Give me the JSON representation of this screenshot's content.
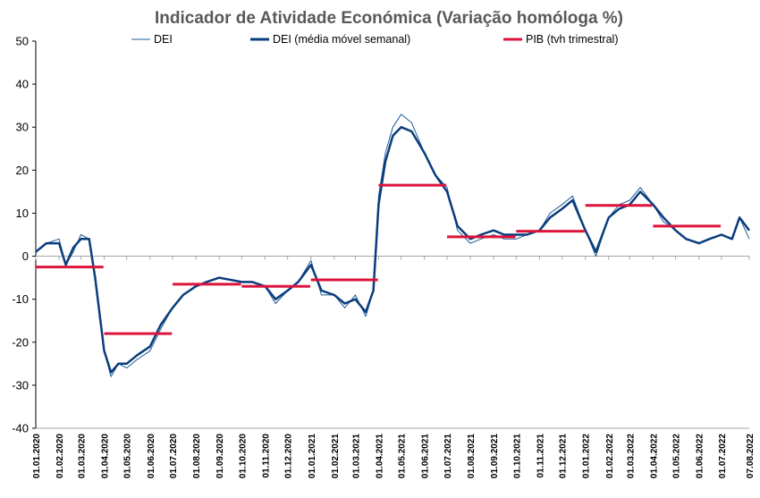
{
  "chart_data": {
    "type": "line",
    "title": "Indicador de Atividade Económica (Variação homóloga %)",
    "xlabel": "",
    "ylabel": "",
    "ylim": [
      -40,
      50
    ],
    "yticks": [
      "50",
      "40",
      "30",
      "20",
      "10",
      "0",
      "-10",
      "-20",
      "-30",
      "-40"
    ],
    "xlim": [
      "2020-01-01",
      "2022-08-07"
    ],
    "xticks": [
      "01.01.2020",
      "01.02.2020",
      "01.03.2020",
      "01.04.2020",
      "01.05.2020",
      "01.06.2020",
      "01.07.2020",
      "01.08.2020",
      "01.09.2020",
      "01.10.2020",
      "01.11.2020",
      "01.12.2020",
      "01.01.2021",
      "01.02.2021",
      "01.03.2021",
      "01.04.2021",
      "01.05.2021",
      "01.06.2021",
      "01.07.2021",
      "01.08.2021",
      "01.09.2021",
      "01.10.2021",
      "01.11.2021",
      "01.12.2021",
      "01.01.2022",
      "01.02.2022",
      "01.03.2022",
      "01.04.2022",
      "01.05.2022",
      "01.06.2022",
      "01.07.2022",
      "07.08.2022"
    ],
    "legend_position": "top",
    "grid": false,
    "series": [
      {
        "name": "DEI",
        "style": "thin-line",
        "color": "#1f5a96",
        "x": [
          "2020-01-01",
          "2020-01-15",
          "2020-02-01",
          "2020-02-10",
          "2020-02-20",
          "2020-03-01",
          "2020-03-12",
          "2020-03-20",
          "2020-04-01",
          "2020-04-10",
          "2020-04-20",
          "2020-05-01",
          "2020-05-15",
          "2020-06-01",
          "2020-06-15",
          "2020-07-01",
          "2020-07-15",
          "2020-08-01",
          "2020-08-15",
          "2020-09-01",
          "2020-10-01",
          "2020-10-15",
          "2020-11-01",
          "2020-11-15",
          "2020-12-01",
          "2020-12-15",
          "2021-01-01",
          "2021-01-15",
          "2021-02-01",
          "2021-02-15",
          "2021-03-01",
          "2021-03-15",
          "2021-03-25",
          "2021-04-01",
          "2021-04-10",
          "2021-04-20",
          "2021-05-01",
          "2021-05-15",
          "2021-06-01",
          "2021-06-15",
          "2021-07-01",
          "2021-07-15",
          "2021-08-01",
          "2021-08-15",
          "2021-09-01",
          "2021-09-15",
          "2021-10-01",
          "2021-10-15",
          "2021-11-01",
          "2021-11-15",
          "2021-12-01",
          "2021-12-15",
          "2022-01-01",
          "2022-01-15",
          "2022-02-01",
          "2022-02-15",
          "2022-03-01",
          "2022-03-15",
          "2022-04-01",
          "2022-04-15",
          "2022-05-01",
          "2022-05-15",
          "2022-06-01",
          "2022-06-15",
          "2022-07-01",
          "2022-07-15",
          "2022-07-25",
          "2022-08-07"
        ],
        "values": [
          1,
          3,
          4,
          -2,
          1,
          5,
          4,
          -5,
          -22,
          -28,
          -25,
          -26,
          -24,
          -22,
          -17,
          -12,
          -9,
          -7,
          -6,
          -5,
          -6,
          -6,
          -7,
          -11,
          -8,
          -6,
          -1,
          -9,
          -9,
          -12,
          -9,
          -14,
          -8,
          14,
          24,
          30,
          33,
          31,
          24,
          19,
          16,
          6,
          3,
          4,
          5,
          4,
          4,
          5,
          6,
          10,
          12,
          14,
          6,
          0,
          9,
          12,
          13,
          16,
          12,
          8,
          6,
          4,
          3,
          4,
          5,
          4,
          9,
          4
        ]
      },
      {
        "name": "DEI (média móvel semanal)",
        "style": "thick-line",
        "color": "#0a3d7c",
        "x": [
          "2020-01-01",
          "2020-01-15",
          "2020-02-01",
          "2020-02-10",
          "2020-02-20",
          "2020-03-01",
          "2020-03-12",
          "2020-03-20",
          "2020-04-01",
          "2020-04-10",
          "2020-04-20",
          "2020-05-01",
          "2020-05-15",
          "2020-06-01",
          "2020-06-15",
          "2020-07-01",
          "2020-07-15",
          "2020-08-01",
          "2020-08-15",
          "2020-09-01",
          "2020-10-01",
          "2020-10-15",
          "2020-11-01",
          "2020-11-15",
          "2020-12-01",
          "2020-12-15",
          "2021-01-01",
          "2021-01-15",
          "2021-02-01",
          "2021-02-15",
          "2021-03-01",
          "2021-03-15",
          "2021-03-25",
          "2021-04-01",
          "2021-04-10",
          "2021-04-20",
          "2021-05-01",
          "2021-05-15",
          "2021-06-01",
          "2021-06-15",
          "2021-07-01",
          "2021-07-15",
          "2021-08-01",
          "2021-08-15",
          "2021-09-01",
          "2021-09-15",
          "2021-10-01",
          "2021-10-15",
          "2021-11-01",
          "2021-11-15",
          "2021-12-01",
          "2021-12-15",
          "2022-01-01",
          "2022-01-15",
          "2022-02-01",
          "2022-02-15",
          "2022-03-01",
          "2022-03-15",
          "2022-04-01",
          "2022-04-15",
          "2022-05-01",
          "2022-05-15",
          "2022-06-01",
          "2022-06-15",
          "2022-07-01",
          "2022-07-15",
          "2022-07-25",
          "2022-08-07"
        ],
        "values": [
          1,
          3,
          3,
          -2,
          2,
          4,
          4,
          -5,
          -22,
          -27,
          -25,
          -25,
          -23,
          -21,
          -16,
          -12,
          -9,
          -7,
          -6,
          -5,
          -6,
          -6,
          -7,
          -10,
          -8,
          -6,
          -2,
          -8,
          -9,
          -11,
          -10,
          -13,
          -8,
          12,
          22,
          28,
          30,
          29,
          24,
          19,
          15,
          7,
          4,
          5,
          6,
          5,
          5,
          5,
          6,
          9,
          11,
          13,
          6,
          1,
          9,
          11,
          12,
          15,
          12,
          9,
          6,
          4,
          3,
          4,
          5,
          4,
          9,
          6
        ]
      },
      {
        "name": "PIB (tvh trimestral)",
        "style": "step-segments",
        "color": "#dc143c",
        "segments": [
          {
            "start": "2020-01-01",
            "end": "2020-03-31",
            "value": -2.5
          },
          {
            "start": "2020-04-01",
            "end": "2020-06-30",
            "value": -18
          },
          {
            "start": "2020-07-01",
            "end": "2020-09-30",
            "value": -6.5
          },
          {
            "start": "2020-10-01",
            "end": "2020-12-31",
            "value": -7
          },
          {
            "start": "2021-01-01",
            "end": "2021-03-31",
            "value": -5.5
          },
          {
            "start": "2021-04-01",
            "end": "2021-06-30",
            "value": 16.5
          },
          {
            "start": "2021-07-01",
            "end": "2021-09-30",
            "value": 4.5
          },
          {
            "start": "2021-10-01",
            "end": "2021-12-31",
            "value": 5.8
          },
          {
            "start": "2022-01-01",
            "end": "2022-03-31",
            "value": 11.8
          },
          {
            "start": "2022-04-01",
            "end": "2022-06-30",
            "value": 7
          }
        ]
      }
    ]
  }
}
